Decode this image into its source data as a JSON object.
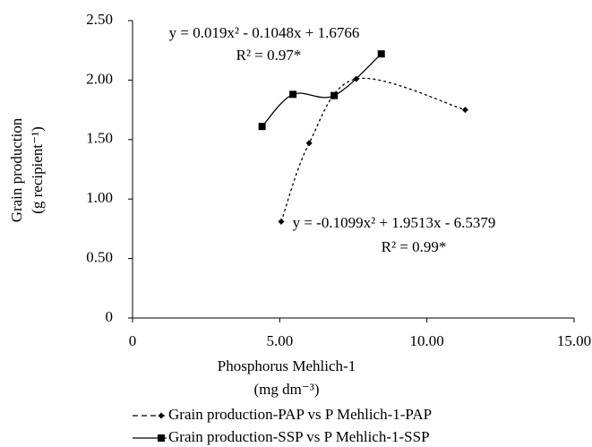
{
  "chart_data": {
    "type": "scatter",
    "x_label": [
      "Phosphorus Mehlich-1",
      "(mg dm⁻³)"
    ],
    "y_label": [
      "Grain production",
      "(g recipient⁻¹)"
    ],
    "xlim": [
      0,
      15
    ],
    "xticks": [
      0,
      {
        "value": 5,
        "label": "5.00"
      },
      {
        "value": 10,
        "label": "10.00"
      },
      {
        "value": 15,
        "label": "15.00"
      }
    ],
    "ylim": [
      0,
      2.5
    ],
    "yticks": [
      0,
      {
        "value": 0.5,
        "label": "0.50"
      },
      {
        "value": 1,
        "label": "1.00"
      },
      {
        "value": 1.5,
        "label": "1.50"
      },
      {
        "value": 2,
        "label": "2.00"
      },
      {
        "value": 2.5,
        "label": "2.50"
      }
    ],
    "grid": false,
    "series": [
      {
        "name": "Grain production-PAP vs P Mehlich-1-PAP",
        "color": "#000000",
        "marker": "diamond",
        "line": "dashed",
        "x": [
          5.05,
          6.0,
          7.6,
          11.3
        ],
        "values": [
          0.81,
          1.47,
          2.01,
          1.75
        ]
      },
      {
        "name": "Grain production-SSP vs P Mehlich-1-SSP",
        "color": "#000000",
        "marker": "square",
        "line": "solid",
        "x": [
          4.4,
          5.45,
          6.85,
          8.45
        ],
        "values": [
          1.61,
          1.88,
          1.87,
          2.22
        ]
      }
    ],
    "annotations": [
      [
        "y = -0.1099x² + 1.9513x - 6.5379",
        "R² = 0.99*"
      ],
      [
        "y = 0.019x² - 0.1048x + 1.6766",
        "R² = 0.97*"
      ]
    ]
  }
}
